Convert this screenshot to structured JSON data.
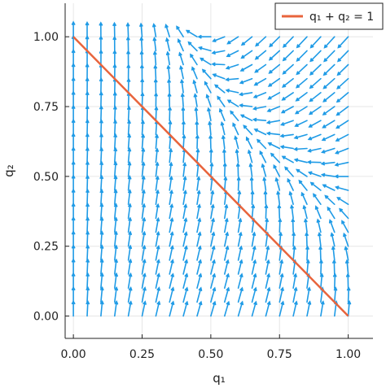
{
  "chart_data": {
    "type": "quiver",
    "xlabel": "q₁",
    "ylabel": "q₂",
    "xlim": [
      -0.03,
      1.09
    ],
    "ylim": [
      -0.08,
      1.12
    ],
    "xticks": [
      0.0,
      0.25,
      0.5,
      0.75,
      1.0
    ],
    "yticks": [
      0.0,
      0.25,
      0.5,
      0.75,
      1.0
    ],
    "xtick_labels": [
      "0.00",
      "0.25",
      "0.50",
      "0.75",
      "1.00"
    ],
    "ytick_labels": [
      "0.00",
      "0.25",
      "0.50",
      "0.75",
      "1.00"
    ],
    "grid": true,
    "legend_position": "top-right",
    "vector_field": {
      "grid_start": 0.0,
      "grid_end": 1.0,
      "grid_count": 21,
      "color": "#1f9be6",
      "description_of_field": "dq1 = q1*(1 - q1 - q2) + 0.08*q1, dq2 = 1 - 2*q1*q2 (scaled)"
    },
    "series": [
      {
        "name": "q₁ + q₂ = 1",
        "type": "line",
        "x": [
          0.0,
          1.0
        ],
        "y": [
          1.0,
          0.0
        ],
        "color": "#e8643c"
      }
    ]
  }
}
